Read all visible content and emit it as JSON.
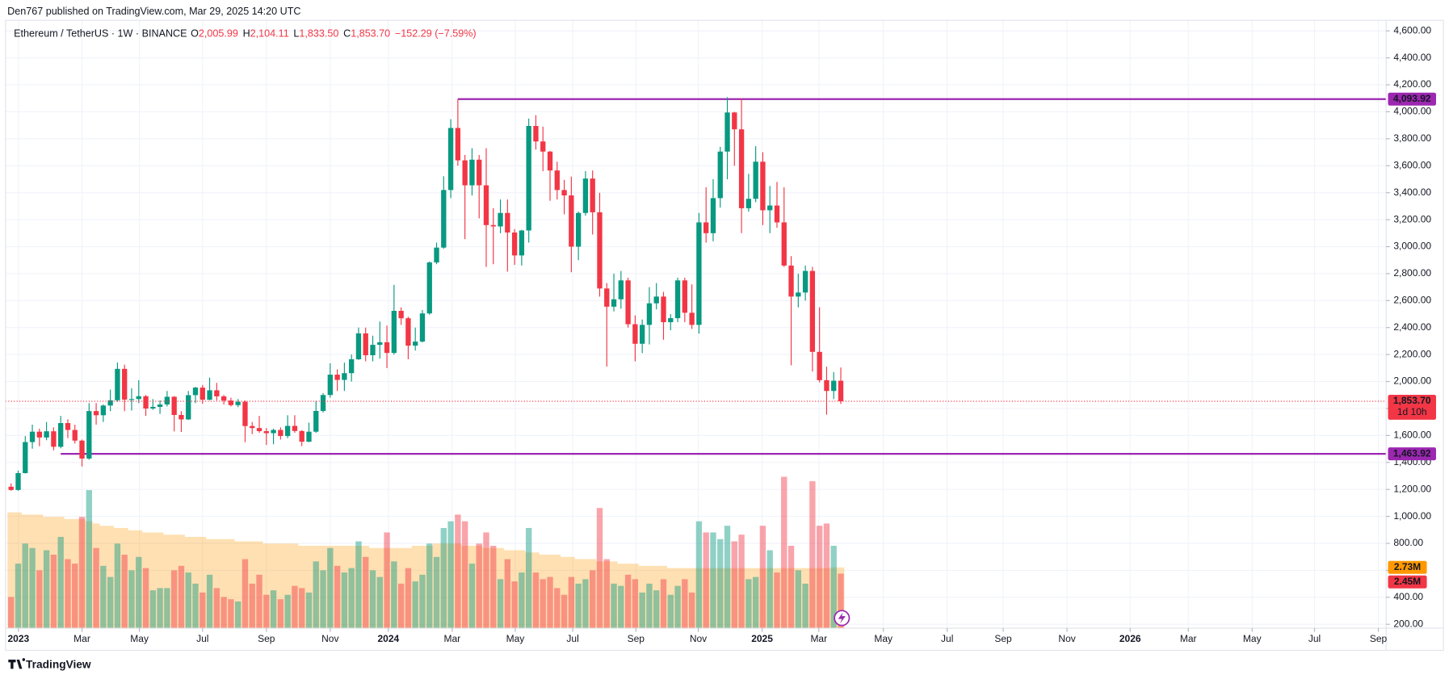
{
  "header": {
    "published": "Den767 published on TradingView.com, Mar 29, 2025 14:20 UTC"
  },
  "chart_data": {
    "type": "candlestick",
    "symbol": "Ethereum / TetherUS · 1W · BINANCE",
    "legend": [
      {
        "key": "O",
        "value": "2,005.99"
      },
      {
        "key": "H",
        "value": "2,104.11"
      },
      {
        "key": "L",
        "value": "1,833.50"
      },
      {
        "key": "C",
        "value": "1,853.70"
      }
    ],
    "change": "−152.29 (−7.59%)",
    "up_color": "#089981",
    "down_color": "#f23645",
    "grid": true,
    "ohlc": [
      [
        1220,
        1245,
        1190,
        1196
      ],
      [
        1196,
        1340,
        1190,
        1321
      ],
      [
        1321,
        1595,
        1318,
        1551
      ],
      [
        1551,
        1680,
        1502,
        1628
      ],
      [
        1628,
        1650,
        1520,
        1585
      ],
      [
        1585,
        1700,
        1565,
        1631
      ],
      [
        1631,
        1660,
        1490,
        1516
      ],
      [
        1516,
        1745,
        1505,
        1692
      ],
      [
        1692,
        1720,
        1580,
        1641
      ],
      [
        1641,
        1680,
        1540,
        1562
      ],
      [
        1562,
        1570,
        1370,
        1429
      ],
      [
        1429,
        1840,
        1420,
        1781
      ],
      [
        1781,
        1840,
        1680,
        1750
      ],
      [
        1750,
        1830,
        1700,
        1822
      ],
      [
        1822,
        1940,
        1780,
        1861
      ],
      [
        1861,
        2141,
        1850,
        2094
      ],
      [
        2094,
        2125,
        1780,
        1866
      ],
      [
        1866,
        1950,
        1785,
        1870
      ],
      [
        1870,
        2010,
        1840,
        1891
      ],
      [
        1891,
        1900,
        1745,
        1800
      ],
      [
        1800,
        1870,
        1790,
        1812
      ],
      [
        1812,
        1860,
        1760,
        1830
      ],
      [
        1830,
        1930,
        1815,
        1887
      ],
      [
        1887,
        1892,
        1630,
        1752
      ],
      [
        1752,
        1780,
        1626,
        1719
      ],
      [
        1719,
        1930,
        1715,
        1899
      ],
      [
        1899,
        1960,
        1840,
        1955
      ],
      [
        1955,
        1975,
        1835,
        1865
      ],
      [
        1865,
        2029,
        1860,
        1935
      ],
      [
        1935,
        1990,
        1860,
        1890
      ],
      [
        1890,
        1900,
        1830,
        1859
      ],
      [
        1859,
        1880,
        1815,
        1825
      ],
      [
        1825,
        1870,
        1810,
        1850
      ],
      [
        1850,
        1860,
        1550,
        1670
      ],
      [
        1670,
        1700,
        1610,
        1655
      ],
      [
        1655,
        1745,
        1620,
        1632
      ],
      [
        1632,
        1655,
        1530,
        1617
      ],
      [
        1617,
        1650,
        1535,
        1641
      ],
      [
        1641,
        1660,
        1570,
        1596
      ],
      [
        1596,
        1750,
        1580,
        1671
      ],
      [
        1671,
        1750,
        1620,
        1633
      ],
      [
        1633,
        1640,
        1521,
        1554
      ],
      [
        1554,
        1695,
        1550,
        1628
      ],
      [
        1628,
        1857,
        1620,
        1782
      ],
      [
        1782,
        1915,
        1770,
        1900
      ],
      [
        1900,
        2135,
        1880,
        2051
      ],
      [
        2051,
        2090,
        1930,
        2012
      ],
      [
        2012,
        2140,
        1930,
        2062
      ],
      [
        2062,
        2200,
        2000,
        2165
      ],
      [
        2165,
        2400,
        2160,
        2357
      ],
      [
        2357,
        2400,
        2150,
        2195
      ],
      [
        2195,
        2340,
        2150,
        2272
      ],
      [
        2272,
        2445,
        2170,
        2291
      ],
      [
        2291,
        2415,
        2100,
        2212
      ],
      [
        2212,
        2717,
        2200,
        2524
      ],
      [
        2524,
        2550,
        2420,
        2469
      ],
      [
        2469,
        2480,
        2165,
        2266
      ],
      [
        2266,
        2400,
        2230,
        2296
      ],
      [
        2296,
        2530,
        2290,
        2505
      ],
      [
        2505,
        2890,
        2495,
        2883
      ],
      [
        2883,
        3030,
        2870,
        2993
      ],
      [
        2993,
        3522,
        2985,
        3420
      ],
      [
        3420,
        3945,
        3360,
        3880
      ],
      [
        3880,
        4093.92,
        3600,
        3640
      ],
      [
        3640,
        3680,
        3056,
        3455
      ],
      [
        3455,
        3730,
        3380,
        3645
      ],
      [
        3645,
        3680,
        3210,
        3455
      ],
      [
        3455,
        3730,
        2850,
        3160
      ],
      [
        3160,
        3285,
        2870,
        3150
      ],
      [
        3150,
        3350,
        3100,
        3250
      ],
      [
        3250,
        3350,
        2815,
        3105
      ],
      [
        3105,
        3130,
        2865,
        2935
      ],
      [
        2935,
        3125,
        2860,
        3120
      ],
      [
        3120,
        3950,
        3030,
        3895
      ],
      [
        3895,
        3975,
        3720,
        3780
      ],
      [
        3780,
        3890,
        3560,
        3705
      ],
      [
        3705,
        3710,
        3340,
        3565
      ],
      [
        3565,
        3630,
        3350,
        3420
      ],
      [
        3420,
        3495,
        3240,
        3380
      ],
      [
        3380,
        3520,
        2810,
        3000
      ],
      [
        3000,
        3260,
        2900,
        3250
      ],
      [
        3250,
        3560,
        3230,
        3505
      ],
      [
        3505,
        3565,
        3090,
        3255
      ],
      [
        3255,
        3400,
        2630,
        2690
      ],
      [
        2690,
        2730,
        2111,
        2555
      ],
      [
        2555,
        2800,
        2520,
        2610
      ],
      [
        2610,
        2820,
        2540,
        2750
      ],
      [
        2750,
        2770,
        2400,
        2425
      ],
      [
        2425,
        2490,
        2150,
        2280
      ],
      [
        2280,
        2460,
        2210,
        2420
      ],
      [
        2420,
        2700,
        2275,
        2580
      ],
      [
        2580,
        2730,
        2535,
        2630
      ],
      [
        2630,
        2665,
        2310,
        2440
      ],
      [
        2440,
        2500,
        2380,
        2470
      ],
      [
        2470,
        2770,
        2440,
        2750
      ],
      [
        2750,
        2770,
        2440,
        2510
      ],
      [
        2510,
        2720,
        2390,
        2420
      ],
      [
        2420,
        3250,
        2355,
        3180
      ],
      [
        3180,
        3440,
        3030,
        3100
      ],
      [
        3100,
        3500,
        3040,
        3360
      ],
      [
        3360,
        3740,
        3290,
        3705
      ],
      [
        3705,
        4108,
        3500,
        3995
      ],
      [
        3995,
        4000,
        3600,
        3870
      ],
      [
        3870,
        4100,
        3100,
        3285
      ],
      [
        3285,
        3540,
        3260,
        3355
      ],
      [
        3355,
        3745,
        3330,
        3630
      ],
      [
        3630,
        3700,
        3160,
        3270
      ],
      [
        3270,
        3450,
        3100,
        3305
      ],
      [
        3305,
        3480,
        3140,
        3180
      ],
      [
        3180,
        3440,
        2850,
        2860
      ],
      [
        2860,
        2930,
        2120,
        2630
      ],
      [
        2630,
        2800,
        2550,
        2660
      ],
      [
        2660,
        2860,
        2600,
        2820
      ],
      [
        2820,
        2850,
        2075,
        2220
      ],
      [
        2220,
        2550,
        1993,
        2010
      ],
      [
        2010,
        2110,
        1754,
        1930
      ],
      [
        1930,
        2070,
        1870,
        2005.99
      ],
      [
        2005.99,
        2104.11,
        1833.5,
        1853.7
      ]
    ],
    "xlim": [
      -0.78,
      193.9
    ],
    "xticks": [
      {
        "value": 1.04,
        "label": "2023"
      },
      {
        "value": 10.0,
        "label": "Mar"
      },
      {
        "value": 18.1,
        "label": "May"
      },
      {
        "value": 27.0,
        "label": "Jul"
      },
      {
        "value": 36.0,
        "label": "Sep"
      },
      {
        "value": 45.0,
        "label": "Nov"
      },
      {
        "value": 53.2,
        "label": "2024"
      },
      {
        "value": 62.2,
        "label": "Mar"
      },
      {
        "value": 71.1,
        "label": "May"
      },
      {
        "value": 79.2,
        "label": "Jul"
      },
      {
        "value": 88.1,
        "label": "Sep"
      },
      {
        "value": 96.9,
        "label": "Nov"
      },
      {
        "value": 105.9,
        "label": "2025"
      },
      {
        "value": 113.9,
        "label": "Mar"
      },
      {
        "value": 123.0,
        "label": "May"
      },
      {
        "value": 132.0,
        "label": "Jul"
      },
      {
        "value": 139.9,
        "label": "Sep"
      },
      {
        "value": 148.9,
        "label": "Nov"
      },
      {
        "value": 157.8,
        "label": "2026"
      },
      {
        "value": 166.0,
        "label": "Mar"
      },
      {
        "value": 175.0,
        "label": "May"
      },
      {
        "value": 183.8,
        "label": "Jul"
      },
      {
        "value": 192.8,
        "label": "Sep"
      }
    ],
    "ylim": [
      171.2,
      4678.1
    ],
    "yticks": [
      {
        "value": 200,
        "label": "200.00"
      },
      {
        "value": 400,
        "label": "400.00"
      },
      {
        "value": 600,
        "label": "600.00"
      },
      {
        "value": 800,
        "label": "800.00"
      },
      {
        "value": 1000,
        "label": "1,000.00"
      },
      {
        "value": 1200,
        "label": "1,200.00"
      },
      {
        "value": 1400,
        "label": "1,400.00"
      },
      {
        "value": 1600,
        "label": "1,600.00"
      },
      {
        "value": 1800,
        "label": "1,800.00"
      },
      {
        "value": 2000,
        "label": "2,000.00"
      },
      {
        "value": 2200,
        "label": "2,200.00"
      },
      {
        "value": 2400,
        "label": "2,400.00"
      },
      {
        "value": 2600,
        "label": "2,600.00"
      },
      {
        "value": 2800,
        "label": "2,800.00"
      },
      {
        "value": 3000,
        "label": "3,000.00"
      },
      {
        "value": 3200,
        "label": "3,200.00"
      },
      {
        "value": 3400,
        "label": "3,400.00"
      },
      {
        "value": 3600,
        "label": "3,600.00"
      },
      {
        "value": 3800,
        "label": "3,800.00"
      },
      {
        "value": 4000,
        "label": "4,000.00"
      },
      {
        "value": 4200,
        "label": "4,200.00"
      },
      {
        "value": 4400,
        "label": "4,400.00"
      },
      {
        "value": 4600,
        "label": "4,600.00"
      }
    ],
    "last_price": {
      "label": "1,853.70",
      "countdown": "1d 10h"
    },
    "levels": [
      {
        "value": 4093.92,
        "label": "4,093.92",
        "start": 63,
        "color": "#9c27b0"
      },
      {
        "value": 1463.92,
        "label": "1,463.92",
        "start": 7,
        "color": "#9c27b0"
      }
    ],
    "volume": {
      "y2lim": [
        0,
        27.3
      ],
      "ma_color": "#ff9800",
      "ma_label": "2.73M",
      "label": "2.45M",
      "values": [
        1.4,
        2.9,
        3.8,
        3.6,
        2.6,
        3.5,
        3.3,
        4.1,
        3.1,
        2.9,
        5.0,
        6.2,
        3.6,
        2.8,
        2.3,
        3.8,
        3.3,
        2.6,
        3.2,
        2.7,
        1.7,
        1.8,
        1.8,
        2.6,
        2.8,
        2.5,
        2.0,
        1.6,
        2.4,
        1.8,
        1.4,
        1.3,
        1.2,
        3.1,
        2.0,
        2.4,
        1.5,
        1.7,
        1.3,
        1.5,
        1.9,
        1.8,
        1.6,
        3.0,
        2.6,
        3.6,
        2.8,
        2.5,
        2.7,
        3.9,
        3.2,
        2.6,
        2.3,
        4.3,
        3.0,
        2.0,
        2.7,
        2.1,
        2.4,
        3.8,
        3.2,
        4.5,
        4.8,
        5.1,
        4.8,
        2.9,
        3.8,
        4.3,
        3.7,
        2.2,
        3.1,
        2.1,
        2.5,
        4.5,
        2.5,
        2.2,
        2.3,
        1.8,
        1.5,
        2.3,
        2.0,
        2.2,
        2.6,
        5.4,
        3.1,
        2.0,
        1.9,
        2.4,
        2.2,
        1.6,
        2.0,
        1.7,
        2.2,
        1.5,
        1.9,
        2.2,
        1.6,
        4.8,
        4.3,
        4.3,
        4.0,
        4.6,
        3.9,
        4.2,
        2.2,
        2.3,
        4.6,
        3.5,
        2.5,
        6.8,
        3.7,
        2.6,
        2.0,
        6.6,
        4.6,
        4.7,
        3.7,
        2.45
      ],
      "ma": [
        5.2,
        5.2,
        5.1,
        5.1,
        5.1,
        5.0,
        5.0,
        5.0,
        4.9,
        4.9,
        4.9,
        4.8,
        4.7,
        4.6,
        4.6,
        4.5,
        4.5,
        4.4,
        4.4,
        4.3,
        4.3,
        4.3,
        4.2,
        4.2,
        4.2,
        4.1,
        4.1,
        4.1,
        4.0,
        4.0,
        4.0,
        4.0,
        3.9,
        3.9,
        3.9,
        3.9,
        3.8,
        3.8,
        3.8,
        3.8,
        3.8,
        3.7,
        3.7,
        3.7,
        3.7,
        3.7,
        3.7,
        3.7,
        3.7,
        3.7,
        3.7,
        3.6,
        3.6,
        3.6,
        3.6,
        3.6,
        3.6,
        3.7,
        3.7,
        3.7,
        3.8,
        3.8,
        3.8,
        3.8,
        3.7,
        3.7,
        3.7,
        3.6,
        3.6,
        3.6,
        3.5,
        3.5,
        3.5,
        3.4,
        3.4,
        3.3,
        3.3,
        3.3,
        3.2,
        3.2,
        3.1,
        3.1,
        3.1,
        3.0,
        3.0,
        3.0,
        2.9,
        2.9,
        2.9,
        2.8,
        2.8,
        2.8,
        2.8,
        2.7,
        2.7,
        2.7,
        2.7,
        2.7,
        2.7,
        2.7,
        2.7,
        2.7,
        2.7,
        2.7,
        2.7,
        2.7,
        2.7,
        2.7,
        2.7,
        2.7,
        2.7,
        2.7,
        2.7,
        2.7,
        2.7,
        2.7,
        2.73,
        2.73
      ]
    }
  },
  "footer": {
    "brand": "TradingView"
  }
}
